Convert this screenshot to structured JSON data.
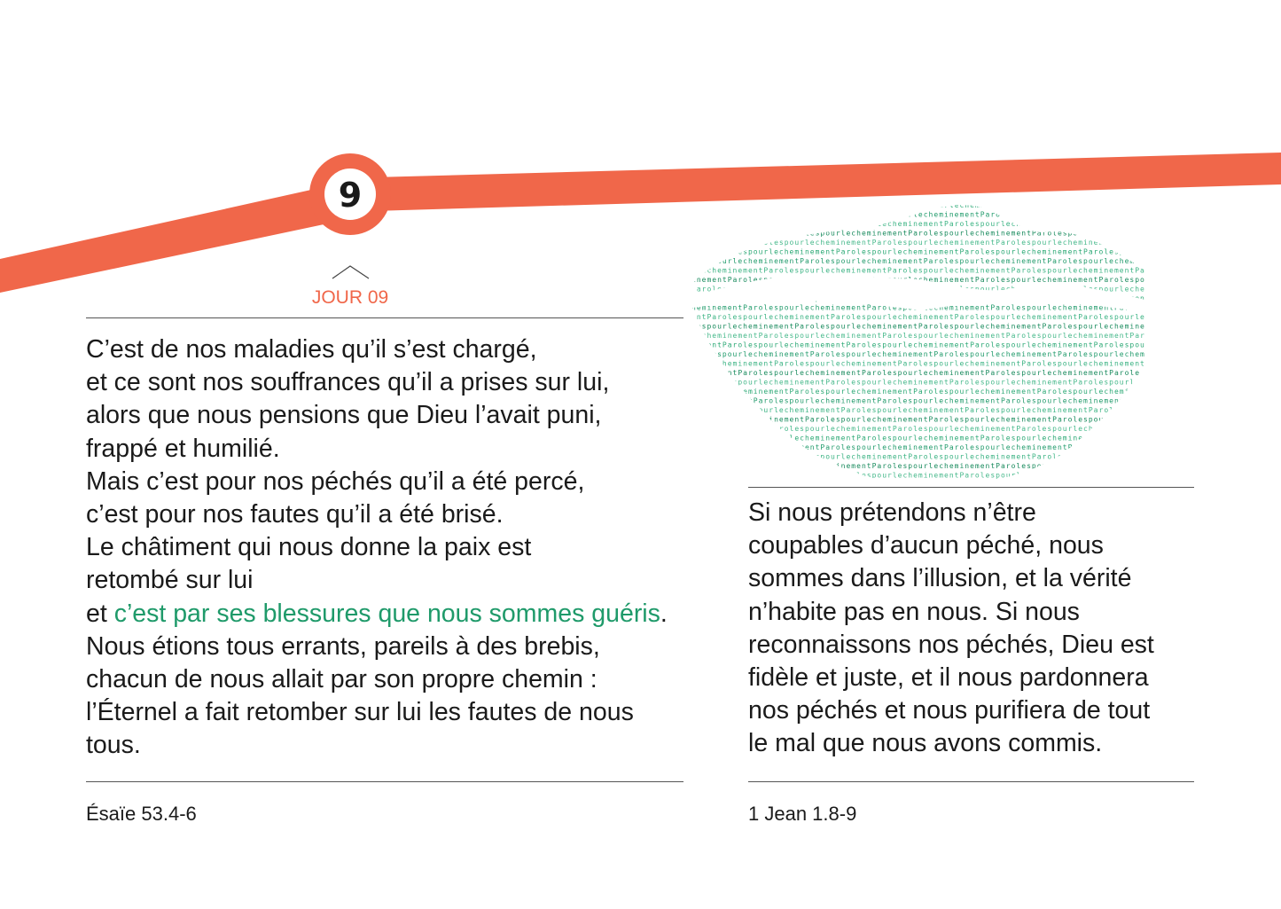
{
  "day": {
    "number": "9",
    "label": "JOUR 09"
  },
  "colors": {
    "accent": "#f0674a",
    "highlight": "#1f9a6a"
  },
  "left": {
    "lines": [
      "C’est de nos maladies qu’il s’est chargé,",
      "et ce sont nos souffrances qu’il a prises sur lui,",
      "alors que nous pensions que Dieu l’avait puni,",
      "frappé et humilié.",
      "Mais c’est pour nos péchés qu’il a été percé,",
      "c’est pour nos fautes qu’il a été brisé.",
      "Le châtiment qui nous donne la paix est",
      "retombé sur lui"
    ],
    "highlight_line": {
      "before": "et ",
      "highlight": "c’est par ses blessures que nous sommes guéris",
      "after": "."
    },
    "lines_after": [
      "Nous étions tous errants, pareils à des brebis,",
      "chacun de nous allait par son propre chemin :",
      "l’Éternel a fait retomber sur lui les fautes de nous",
      "tous."
    ],
    "reference": "Ésaïe 53.4-6"
  },
  "right": {
    "lines": [
      "Si nous prétendons n’être",
      "coupables d’aucun péché, nous",
      "sommes dans l’illusion, et la vérité",
      "n’habite pas en nous. Si nous",
      "reconnaissons nos péchés, Dieu est",
      "fidèle et juste, et il nous pardonnera",
      "nos péchés et nous purifiera de tout",
      "le mal que nous avons commis."
    ],
    "reference": "1 Jean 1.8-9"
  },
  "illustration": {
    "type": "lips-word-art",
    "words": "urlecheminementParolespo"
  }
}
